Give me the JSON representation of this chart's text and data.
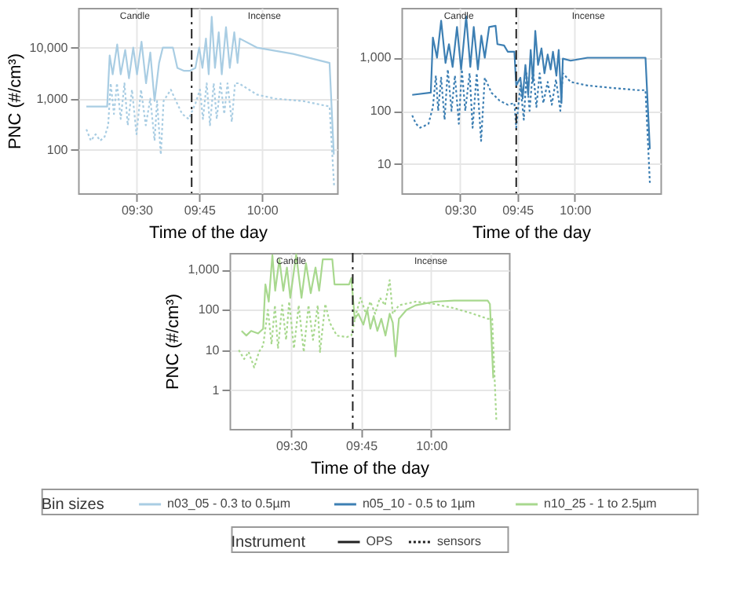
{
  "chart_data": [
    {
      "type": "line",
      "xlabel": "Time of the day",
      "ylabel": "PNC (#/cm³)",
      "log": "y",
      "grid": true,
      "xlim": [
        9.267,
        10.3
      ],
      "ylim": [
        14,
        60000
      ],
      "xticks": [
        {
          "value": 9.5,
          "label": "09:30"
        },
        {
          "value": 9.75,
          "label": "09:45"
        },
        {
          "value": 10,
          "label": "10:00"
        }
      ],
      "yticks": [
        {
          "value": 100,
          "label": "100"
        },
        {
          "value": 1000,
          "label": "1,000"
        },
        {
          "value": 10000,
          "label": "10,000"
        }
      ],
      "ref_lines": [
        {
          "axis": "x",
          "value": 9.72,
          "line_style": "dashdot",
          "color": "#222222"
        }
      ],
      "annotations": [
        "Candle",
        "Incense"
      ],
      "series": [
        {
          "name": "n03_05 - 0.3 to 0.5µm",
          "color": "#a9cde3",
          "line_style": "solid",
          "x": [
            9.3,
            9.383,
            9.393,
            9.405,
            9.423,
            9.437,
            9.455,
            9.47,
            9.487,
            9.502,
            9.52,
            9.538,
            9.555,
            9.572,
            9.59,
            9.605,
            9.645,
            9.663,
            9.69,
            9.712,
            9.735,
            9.75,
            9.763,
            9.777,
            9.788,
            9.8,
            9.813,
            9.828,
            9.84,
            9.857,
            9.872,
            9.89,
            9.903,
            9.912,
            9.98,
            10.125,
            10.27,
            10.287
          ],
          "values": [
            700,
            700,
            7000,
            3000,
            11500,
            3000,
            9000,
            2500,
            10000,
            3000,
            13000,
            2000,
            8000,
            900,
            5000,
            10000,
            10000,
            4000,
            3500,
            3500,
            4000,
            10000,
            4000,
            15000,
            3000,
            40000,
            4000,
            20000,
            3000,
            25000,
            4000,
            20000,
            5000,
            15000,
            10000,
            7500,
            5000,
            80
          ]
        },
        {
          "color": "#a9cde3",
          "line_style": "dotted",
          "x": [
            9.3,
            9.318,
            9.337,
            9.355,
            9.373,
            9.387,
            9.397,
            9.41,
            9.422,
            9.437,
            9.452,
            9.465,
            9.482,
            9.5,
            9.518,
            9.537,
            9.555,
            9.572,
            9.582,
            9.597,
            9.608,
            9.637,
            9.653,
            9.682,
            9.708,
            9.735,
            9.753,
            9.765,
            9.78,
            9.793,
            9.808,
            9.82,
            9.835,
            9.85,
            9.863,
            9.88,
            9.893,
            9.908,
            9.98,
            10.053,
            10.162,
            10.27,
            10.288
          ],
          "values": [
            250,
            150,
            200,
            150,
            180,
            300,
            2000,
            500,
            2000,
            400,
            2000,
            300,
            1500,
            200,
            1500,
            300,
            1000,
            150,
            900,
            80,
            900,
            1500,
            1000,
            500,
            400,
            800,
            1500,
            400,
            2000,
            300,
            2000,
            400,
            2000,
            500,
            2000,
            350,
            2000,
            2000,
            1200,
            1000,
            900,
            700,
            20
          ]
        }
      ]
    },
    {
      "type": "line",
      "xlabel": "Time of the day",
      "log": "y",
      "grid": true,
      "xlim": [
        9.245,
        10.373
      ],
      "ylim": [
        2.8,
        8700
      ],
      "xticks": [
        {
          "value": 9.5,
          "label": "09:30"
        },
        {
          "value": 9.75,
          "label": "09:45"
        },
        {
          "value": 10,
          "label": "10:00"
        }
      ],
      "yticks": [
        {
          "value": 10,
          "label": "10"
        },
        {
          "value": 100,
          "label": "100"
        },
        {
          "value": 1000,
          "label": "1,000"
        }
      ],
      "ref_lines": [
        {
          "axis": "x",
          "value": 9.745,
          "line_style": "dashdot",
          "color": "#222222"
        }
      ],
      "annotations": [
        "Candle",
        "Incense"
      ],
      "series": [
        {
          "name": "n05_10 - 0.5 to 1µm",
          "color": "#3d7fb3",
          "line_style": "solid",
          "x": [
            9.292,
            9.373,
            9.382,
            9.4,
            9.418,
            9.437,
            9.452,
            9.468,
            9.487,
            9.505,
            9.527,
            9.545,
            9.56,
            9.578,
            9.593,
            9.608,
            9.627,
            9.655,
            9.663,
            9.692,
            9.708,
            9.737,
            9.745,
            9.763,
            9.773,
            9.785,
            9.797,
            9.808,
            9.818,
            9.828,
            9.84,
            9.855,
            9.868,
            9.882,
            9.895,
            9.905,
            9.92,
            9.93,
            9.942,
            9.948,
            9.982,
            10.055,
            10.2,
            10.308,
            10.327
          ],
          "values": [
            200,
            220,
            2400,
            1000,
            5000,
            800,
            1800,
            670,
            3800,
            600,
            6000,
            670,
            3800,
            600,
            2600,
            1000,
            3800,
            4000,
            1800,
            1700,
            1300,
            1300,
            300,
            420,
            170,
            730,
            200,
            1400,
            350,
            3200,
            730,
            1500,
            510,
            1150,
            600,
            1300,
            460,
            1400,
            140,
            960,
            880,
            1000,
            1000,
            1000,
            19
          ]
        },
        {
          "color": "#3d7fb3",
          "line_style": "dotted",
          "x": [
            9.292,
            9.308,
            9.327,
            9.345,
            9.363,
            9.382,
            9.395,
            9.405,
            9.418,
            9.433,
            9.447,
            9.463,
            9.478,
            9.495,
            9.508,
            9.523,
            9.542,
            9.555,
            9.573,
            9.592,
            9.608,
            9.637,
            9.673,
            9.708,
            9.737,
            9.745,
            9.763,
            9.778,
            9.79,
            9.803,
            9.818,
            9.833,
            9.847,
            9.863,
            9.882,
            9.9,
            9.918,
            9.937,
            9.948,
            9.982,
            10.055,
            10.163,
            10.272,
            10.308,
            10.327
          ],
          "values": [
            82,
            57,
            48,
            52,
            57,
            118,
            460,
            100,
            420,
            68,
            600,
            100,
            460,
            57,
            600,
            100,
            510,
            48,
            510,
            27,
            420,
            220,
            155,
            130,
            140,
            48,
            300,
            68,
            510,
            100,
            600,
            118,
            510,
            140,
            350,
            130,
            390,
            100,
            510,
            350,
            300,
            270,
            245,
            245,
            4.4
          ]
        }
      ]
    },
    {
      "type": "line",
      "xlabel": "Time of the day",
      "ylabel": "PNC (#/cm³)",
      "log": "y",
      "grid": true,
      "legend": "bottom",
      "legend_title": "Bin sizes",
      "xlim": [
        9.28,
        10.278
      ],
      "ylim": [
        0.11,
        2600
      ],
      "xticks": [
        {
          "value": 9.5,
          "label": "09:30"
        },
        {
          "value": 9.75,
          "label": "09:45"
        },
        {
          "value": 10,
          "label": "10:00"
        }
      ],
      "yticks": [
        {
          "value": 1,
          "label": "1"
        },
        {
          "value": 10,
          "label": "10"
        },
        {
          "value": 100,
          "label": "100"
        },
        {
          "value": 1000,
          "label": "1,000"
        }
      ],
      "ref_lines": [
        {
          "axis": "x",
          "value": 9.72,
          "line_style": "dashdot",
          "color": "#222222"
        }
      ],
      "annotations": [
        "Candle",
        "Incense",
        "Instrument",
        "OPS",
        "sensors"
      ],
      "series": [
        {
          "name": "n10_25 - 1 to 2.5µm",
          "color": "#a8d88e",
          "line_style": "solid",
          "x": [
            9.323,
            9.34,
            9.357,
            9.382,
            9.4,
            9.408,
            9.42,
            9.433,
            9.443,
            9.458,
            9.472,
            9.485,
            9.497,
            9.518,
            9.537,
            9.553,
            9.57,
            9.587,
            9.6,
            9.613,
            9.647,
            9.655,
            9.707,
            9.715,
            9.727,
            9.74,
            9.758,
            9.772,
            9.783,
            9.795,
            9.808,
            9.822,
            9.837,
            9.852,
            9.863,
            9.873,
            9.885,
            9.912,
            9.945,
            10.013,
            10.082,
            10.202,
            10.21,
            10.222
          ],
          "values": [
            30,
            23,
            30,
            26,
            34,
            430,
            160,
            2300,
            300,
            1800,
            300,
            1130,
            200,
            2400,
            200,
            1440,
            260,
            1130,
            300,
            1800,
            1800,
            430,
            430,
            620,
            60,
            80,
            43,
            100,
            34,
            70,
            30,
            60,
            23,
            80,
            48,
            7,
            60,
            100,
            130,
            160,
            170,
            170,
            140,
            2
          ]
        },
        {
          "color": "#a8d88e",
          "line_style": "dotted",
          "x": [
            9.313,
            9.332,
            9.348,
            9.368,
            9.385,
            9.4,
            9.417,
            9.43,
            9.442,
            9.453,
            9.468,
            9.482,
            9.493,
            9.51,
            9.527,
            9.545,
            9.562,
            9.578,
            9.595,
            9.603,
            9.622,
            9.638,
            9.663,
            9.698,
            9.715,
            9.732,
            9.748,
            9.767,
            9.783,
            9.8,
            9.817,
            9.835,
            9.852,
            9.863,
            9.885,
            9.945,
            10.013,
            10.082,
            10.15,
            10.202,
            10.218,
            10.233
          ],
          "values": [
            10,
            6,
            9,
            3.7,
            9,
            13,
            100,
            14,
            130,
            11,
            130,
            18,
            160,
            11,
            130,
            9,
            130,
            18,
            130,
            9,
            140,
            48,
            23,
            21,
            23,
            80,
            200,
            80,
            160,
            80,
            200,
            130,
            550,
            80,
            130,
            160,
            140,
            110,
            80,
            60,
            60,
            0.18
          ]
        }
      ]
    }
  ]
}
